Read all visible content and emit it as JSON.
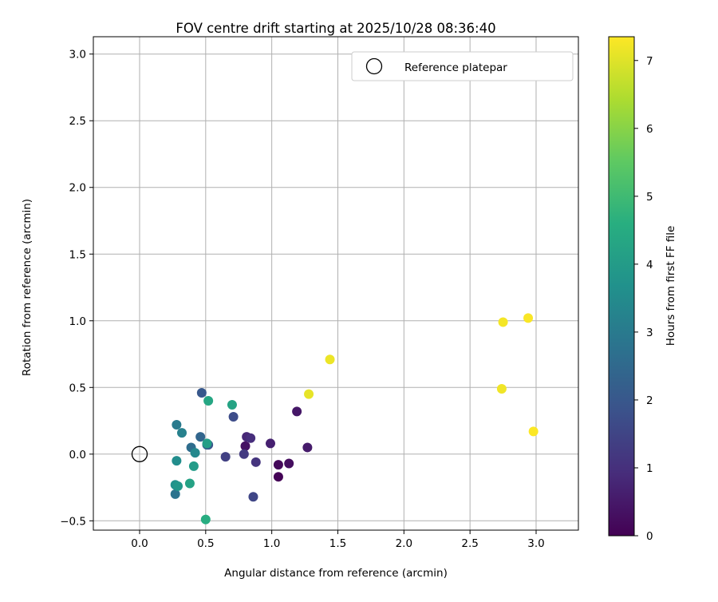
{
  "chart_data": {
    "type": "scatter",
    "title": "FOV centre drift starting at 2025/10/28 08:36:40",
    "xlabel": "Angular distance from reference (arcmin)",
    "ylabel": "Rotation from reference (arcmin)",
    "xlim": [
      -0.35,
      3.32
    ],
    "ylim": [
      -0.57,
      3.13
    ],
    "xticks": [
      0.0,
      0.5,
      1.0,
      1.5,
      2.0,
      2.5,
      3.0
    ],
    "yticks": [
      -0.5,
      0.0,
      0.5,
      1.0,
      1.5,
      2.0,
      2.5,
      3.0
    ],
    "xtick_labels": [
      "0.0",
      "0.5",
      "1.0",
      "1.5",
      "2.0",
      "2.5",
      "3.0"
    ],
    "ytick_labels": [
      "−0.5",
      "0.0",
      "0.5",
      "1.0",
      "1.5",
      "2.0",
      "2.5",
      "3.0"
    ],
    "grid": true,
    "legend": {
      "position": "top-right",
      "entries": [
        {
          "label": "Reference platepar",
          "marker": "open-circle",
          "x": 0.0,
          "y": 0.0
        }
      ]
    },
    "colorbar": {
      "label": "Hours from first FF file",
      "colormap": "viridis",
      "range": [
        0,
        7.35
      ],
      "ticks": [
        0,
        1,
        2,
        3,
        4,
        5,
        6,
        7
      ],
      "tick_labels": [
        "0",
        "1",
        "2",
        "3",
        "4",
        "5",
        "6",
        "7"
      ]
    },
    "points": [
      {
        "x": 1.05,
        "y": -0.17,
        "h": 0.05
      },
      {
        "x": 1.05,
        "y": -0.08,
        "h": 0.15
      },
      {
        "x": 1.13,
        "y": -0.07,
        "h": 0.25
      },
      {
        "x": 0.8,
        "y": 0.06,
        "h": 0.35
      },
      {
        "x": 1.19,
        "y": 0.32,
        "h": 0.45
      },
      {
        "x": 1.27,
        "y": 0.05,
        "h": 0.55
      },
      {
        "x": 0.99,
        "y": 0.08,
        "h": 0.65
      },
      {
        "x": 0.81,
        "y": 0.13,
        "h": 0.8
      },
      {
        "x": 0.84,
        "y": 0.12,
        "h": 0.95
      },
      {
        "x": 0.88,
        "y": -0.06,
        "h": 1.1
      },
      {
        "x": 0.79,
        "y": 0.0,
        "h": 1.25
      },
      {
        "x": 0.65,
        "y": -0.02,
        "h": 1.4
      },
      {
        "x": 0.86,
        "y": -0.32,
        "h": 1.55
      },
      {
        "x": 0.71,
        "y": 0.28,
        "h": 1.7
      },
      {
        "x": 0.52,
        "y": 0.07,
        "h": 1.85
      },
      {
        "x": 0.47,
        "y": 0.46,
        "h": 2.0
      },
      {
        "x": 0.51,
        "y": 0.07,
        "h": 2.2
      },
      {
        "x": 0.46,
        "y": 0.13,
        "h": 2.4
      },
      {
        "x": 0.39,
        "y": 0.05,
        "h": 2.6
      },
      {
        "x": 0.27,
        "y": -0.3,
        "h": 2.8
      },
      {
        "x": 0.28,
        "y": 0.22,
        "h": 3.0
      },
      {
        "x": 0.32,
        "y": 0.16,
        "h": 3.2
      },
      {
        "x": 0.42,
        "y": 0.01,
        "h": 3.4
      },
      {
        "x": 0.28,
        "y": -0.05,
        "h": 3.55
      },
      {
        "x": 0.27,
        "y": -0.23,
        "h": 3.7
      },
      {
        "x": 0.29,
        "y": -0.24,
        "h": 3.85
      },
      {
        "x": 0.41,
        "y": -0.09,
        "h": 4.0
      },
      {
        "x": 0.51,
        "y": 0.08,
        "h": 4.1
      },
      {
        "x": 0.38,
        "y": -0.22,
        "h": 4.2
      },
      {
        "x": 0.7,
        "y": 0.37,
        "h": 4.25
      },
      {
        "x": 0.52,
        "y": 0.4,
        "h": 4.35
      },
      {
        "x": 0.5,
        "y": -0.49,
        "h": 4.55
      },
      {
        "x": 1.28,
        "y": 0.45,
        "h": 7.1
      },
      {
        "x": 1.44,
        "y": 0.71,
        "h": 7.15
      },
      {
        "x": 2.74,
        "y": 0.49,
        "h": 7.2
      },
      {
        "x": 2.75,
        "y": 0.99,
        "h": 7.25
      },
      {
        "x": 2.94,
        "y": 1.02,
        "h": 7.3
      },
      {
        "x": 2.98,
        "y": 0.17,
        "h": 7.33
      }
    ]
  }
}
